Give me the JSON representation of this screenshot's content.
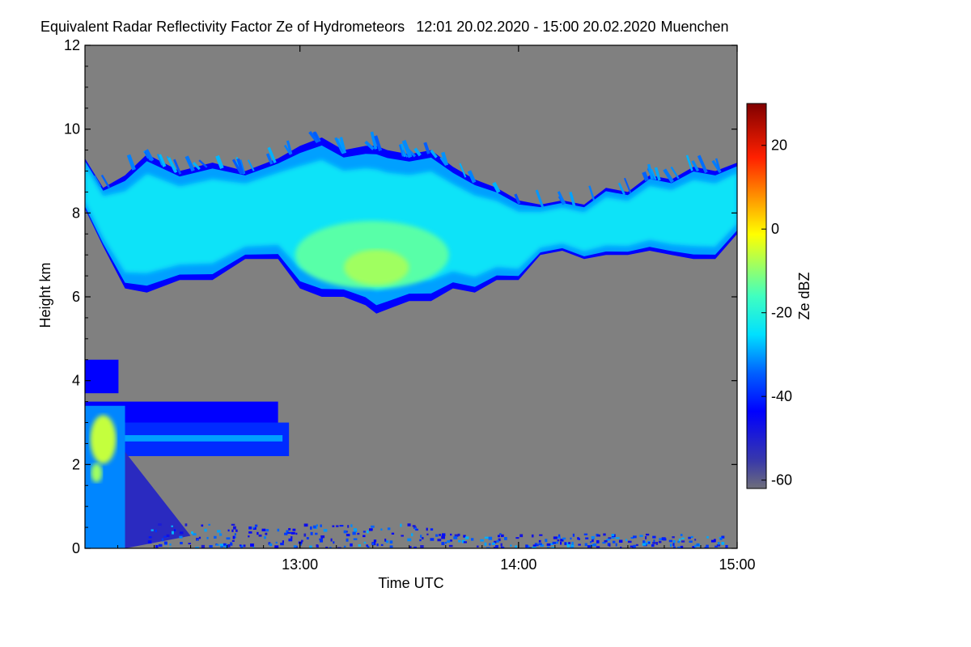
{
  "chart_data": {
    "type": "heatmap",
    "title": "Equivalent Radar Reflectivity Factor Ze of Hydrometeors",
    "time_range": "12:01 20.02.2020 - 15:00 20.02.2020",
    "location": "Muenchen",
    "xlabel": "Time UTC",
    "ylabel": "Height km",
    "x_range_hours": [
      12.0167,
      15.0
    ],
    "x_ticks": [
      {
        "value": 13.0,
        "label": "13:00"
      },
      {
        "value": 14.0,
        "label": "14:00"
      },
      {
        "value": 15.0,
        "label": "15:00"
      }
    ],
    "y_range_km": [
      0,
      12
    ],
    "y_ticks": [
      0,
      2,
      4,
      6,
      8,
      10,
      12
    ],
    "colorbar": {
      "label": "Ze dBZ",
      "range": [
        -62,
        30
      ],
      "ticks": [
        -60,
        -40,
        -20,
        0,
        20
      ]
    },
    "background_color": "#808080",
    "features": [
      {
        "name": "upper ice cloud",
        "t_start": 12.0167,
        "t_end": 15.0,
        "base_km": 5.6,
        "top_km": 9.8,
        "max_ze_dbz": -8
      },
      {
        "name": "lower cloud layer",
        "t_start": 12.0167,
        "t_end": 12.95,
        "base_km": 2.2,
        "top_km": 3.5,
        "max_ze_dbz": -5
      },
      {
        "name": "small cloud fragment",
        "t_start": 12.0167,
        "t_end": 12.17,
        "base_km": 3.7,
        "top_km": 4.5,
        "max_ze_dbz": -40
      },
      {
        "name": "near-surface echoes",
        "t_start": 12.0167,
        "t_end": 14.95,
        "base_km": 0.0,
        "top_km": 0.6,
        "max_ze_dbz": -25
      }
    ]
  }
}
